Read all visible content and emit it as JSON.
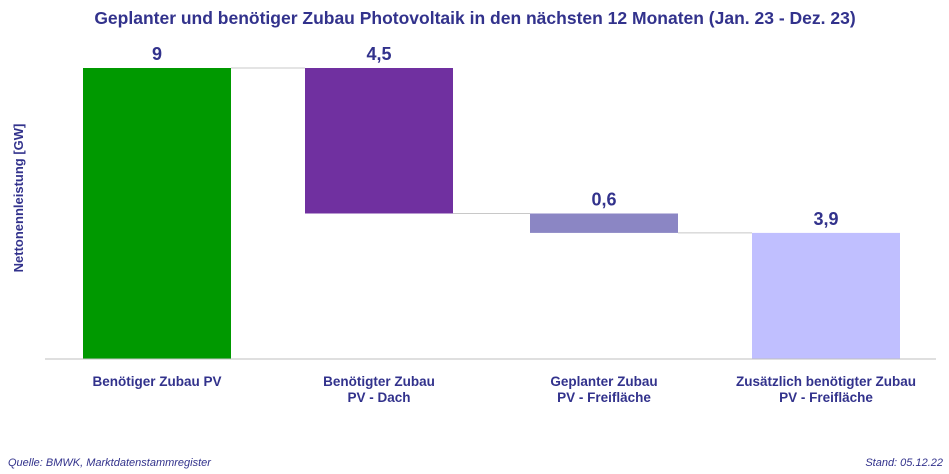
{
  "chart_data": {
    "type": "bar",
    "subtype": "waterfall",
    "title": "Geplanter und benötiger Zubau Photovoltaik in den nächsten 12 Monaten (Jan. 23 - Dez. 23)",
    "ylabel": "Nettonennleistung [GW]",
    "xlabel": "",
    "ylim": [
      0,
      9
    ],
    "grid": false,
    "categories": [
      [
        "Benötiger Zubau PV"
      ],
      [
        "Benötigter Zubau",
        "PV - Dach"
      ],
      [
        "Geplanter Zubau",
        "PV - Freifläche"
      ],
      [
        "Zusätzlich benötigter Zubau",
        "PV - Freifläche"
      ]
    ],
    "values": [
      9,
      4.5,
      0.6,
      3.9
    ],
    "value_labels": [
      "9",
      "4,5",
      "0,6",
      "3,9"
    ],
    "bar_ranges": [
      [
        0,
        9
      ],
      [
        4.5,
        9
      ],
      [
        3.9,
        4.5
      ],
      [
        0,
        3.9
      ]
    ],
    "colors": [
      "#009900",
      "#7030a0",
      "#8b86c4",
      "#c0bfff"
    ]
  },
  "footer": {
    "source": "Quelle: BMWK, Marktdatenstammregister",
    "date": "Stand: 05.12.22"
  }
}
